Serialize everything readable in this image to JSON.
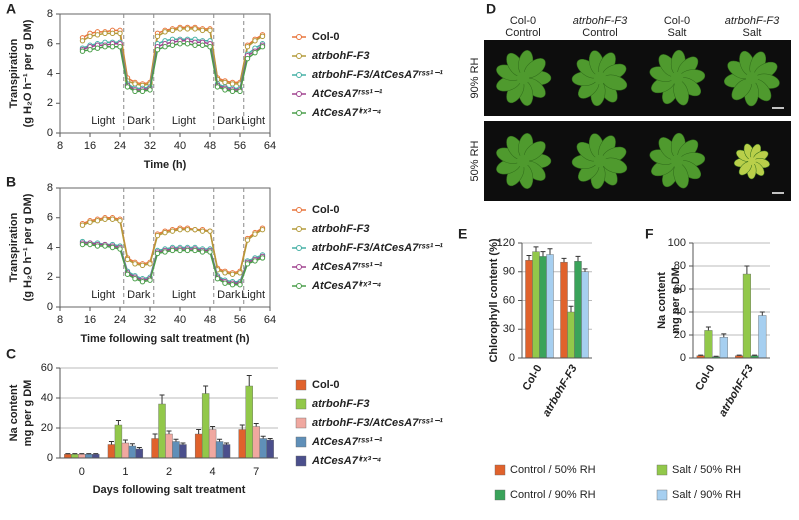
{
  "chart_data": [
    {
      "type": "line",
      "panel": "A",
      "xlabel": "Time (h)",
      "ylabel": [
        "Transpiration",
        "(g H₂O h⁻¹ per g DM)"
      ],
      "xlim": [
        8,
        64
      ],
      "xticks": [
        8,
        16,
        24,
        32,
        40,
        48,
        56,
        64
      ],
      "ylim": [
        0,
        8
      ],
      "yticks": [
        0,
        2,
        4,
        6,
        8
      ],
      "x": [
        14,
        16,
        18,
        20,
        22,
        24,
        26,
        28,
        30,
        32,
        34,
        36,
        38,
        40,
        42,
        44,
        46,
        48,
        50,
        52,
        54,
        56,
        58,
        60,
        62
      ],
      "transitions": [
        25,
        33,
        49,
        57
      ],
      "annotations": [
        "Light",
        "Dark",
        "Light",
        "Dark",
        "Light"
      ],
      "series": [
        {
          "name": "Col-0",
          "color": "#e8743b",
          "values": [
            6.4,
            6.7,
            6.8,
            6.8,
            6.9,
            6.9,
            3.7,
            3.4,
            3.3,
            3.4,
            6.7,
            6.9,
            7.0,
            7.1,
            7.1,
            7.1,
            7.0,
            7.0,
            3.7,
            3.5,
            3.4,
            3.4,
            5.9,
            6.3,
            6.6
          ]
        },
        {
          "name": "atrbohF-F3",
          "color": "#b39a3a",
          "values": [
            6.2,
            6.5,
            6.6,
            6.7,
            6.7,
            6.7,
            3.5,
            3.3,
            3.2,
            3.3,
            6.5,
            6.8,
            6.9,
            7.0,
            7.0,
            7.0,
            6.9,
            6.9,
            3.6,
            3.4,
            3.3,
            3.3,
            5.8,
            6.2,
            6.5
          ]
        },
        {
          "name": "atrbohF-F3/AtCesA7ʳˢˢ¹⁻¹",
          "color": "#45b0a5",
          "values": [
            5.7,
            5.9,
            6.0,
            6.1,
            6.1,
            6.1,
            3.3,
            3.0,
            3.0,
            3.1,
            6.0,
            6.2,
            6.3,
            6.3,
            6.3,
            6.3,
            6.2,
            6.2,
            3.3,
            3.1,
            3.0,
            3.0,
            5.3,
            5.7,
            6.0
          ]
        },
        {
          "name": "AtCesA7ʳˢˢ¹⁻¹",
          "color": "#a0428f",
          "values": [
            5.6,
            5.8,
            5.9,
            5.9,
            6.0,
            6.0,
            3.2,
            2.9,
            2.9,
            3.0,
            5.8,
            6.0,
            6.1,
            6.2,
            6.2,
            6.1,
            6.1,
            6.0,
            3.2,
            3.0,
            2.9,
            2.9,
            5.2,
            5.5,
            5.9
          ]
        },
        {
          "name": "AtCesA7ⁱʳˣ³⁻⁴",
          "color": "#4a9e4a",
          "values": [
            5.5,
            5.6,
            5.7,
            5.8,
            5.8,
            5.8,
            3.1,
            2.8,
            2.8,
            2.9,
            5.6,
            5.8,
            5.9,
            6.0,
            6.0,
            5.9,
            5.9,
            5.8,
            3.1,
            2.9,
            2.8,
            2.8,
            5.0,
            5.4,
            5.8
          ]
        }
      ]
    },
    {
      "type": "line",
      "panel": "B",
      "xlabel": "Time following salt treatment (h)",
      "ylabel": [
        "Transpiration",
        "(g H₂O h⁻¹ per g DM)"
      ],
      "xlim": [
        8,
        64
      ],
      "xticks": [
        8,
        16,
        24,
        32,
        40,
        48,
        56,
        64
      ],
      "ylim": [
        0,
        8
      ],
      "yticks": [
        0,
        2,
        4,
        6,
        8
      ],
      "x": [
        14,
        16,
        18,
        20,
        22,
        24,
        26,
        28,
        30,
        32,
        34,
        36,
        38,
        40,
        42,
        44,
        46,
        48,
        50,
        52,
        54,
        56,
        58,
        60,
        62
      ],
      "transitions": [
        25,
        33,
        49,
        57
      ],
      "annotations": [
        "Light",
        "Dark",
        "Light",
        "Dark",
        "Light"
      ],
      "series": [
        {
          "name": "Col-0",
          "color": "#e8743b",
          "values": [
            5.6,
            5.8,
            5.9,
            6.0,
            6.0,
            5.9,
            3.3,
            3.0,
            2.9,
            3.0,
            4.9,
            5.1,
            5.2,
            5.3,
            5.3,
            5.2,
            5.2,
            5.1,
            2.6,
            2.4,
            2.3,
            2.4,
            4.6,
            5.0,
            5.3
          ]
        },
        {
          "name": "atrbohF-F3",
          "color": "#b39a3a",
          "values": [
            5.5,
            5.7,
            5.8,
            5.9,
            5.9,
            5.8,
            3.2,
            2.9,
            2.8,
            2.9,
            4.8,
            5.0,
            5.1,
            5.2,
            5.2,
            5.2,
            5.1,
            5.1,
            2.5,
            2.3,
            2.2,
            2.3,
            4.5,
            4.9,
            5.2
          ]
        },
        {
          "name": "atrbohF-F3/AtCesA7ʳˢˢ¹⁻¹",
          "color": "#45b0a5",
          "values": [
            4.4,
            4.3,
            4.3,
            4.2,
            4.2,
            4.1,
            2.4,
            2.1,
            1.9,
            2.0,
            3.8,
            3.9,
            4.0,
            4.0,
            4.0,
            4.0,
            3.9,
            3.9,
            2.1,
            1.8,
            1.7,
            1.7,
            3.1,
            3.3,
            3.5
          ]
        },
        {
          "name": "AtCesA7ʳˢˢ¹⁻¹",
          "color": "#a0428f",
          "values": [
            4.3,
            4.3,
            4.2,
            4.2,
            4.1,
            4.0,
            2.3,
            2.0,
            1.8,
            1.9,
            3.7,
            3.8,
            3.9,
            3.9,
            3.9,
            3.9,
            3.8,
            3.8,
            2.0,
            1.7,
            1.6,
            1.6,
            3.0,
            3.2,
            3.4
          ]
        },
        {
          "name": "AtCesA7ⁱʳˣ³⁻⁴",
          "color": "#4a9e4a",
          "values": [
            4.2,
            4.2,
            4.1,
            4.1,
            4.0,
            3.9,
            2.2,
            1.9,
            1.7,
            1.8,
            3.6,
            3.7,
            3.8,
            3.8,
            3.8,
            3.8,
            3.7,
            3.7,
            1.9,
            1.6,
            1.5,
            1.5,
            2.9,
            3.1,
            3.3
          ]
        }
      ]
    },
    {
      "type": "bar",
      "panel": "C",
      "xlabel": "Days following salt treatment",
      "ylabel": [
        "Na content",
        "mg per g DM"
      ],
      "categories": [
        "0",
        "1",
        "2",
        "4",
        "7"
      ],
      "ylim": [
        0,
        60
      ],
      "yticks": [
        0,
        20,
        40,
        60
      ],
      "grid": true,
      "series": [
        {
          "name": "Col-0",
          "color": "#e0622c",
          "values": [
            2.5,
            9,
            13,
            16,
            19
          ],
          "errors": [
            0.4,
            2,
            3,
            3,
            3
          ]
        },
        {
          "name": "atrbohF-F3",
          "color": "#92c84a",
          "values": [
            2.5,
            22,
            36,
            43,
            48
          ],
          "errors": [
            0.4,
            3,
            6,
            5,
            7
          ]
        },
        {
          "name": "atrbohF-F3/AtCesA7ʳˢˢ¹⁻¹",
          "color": "#f0a8a0",
          "values": [
            2.5,
            10,
            16,
            19,
            21
          ],
          "errors": [
            0.4,
            2,
            2,
            2,
            2
          ]
        },
        {
          "name": "AtCesA7ʳˢˢ¹⁻¹",
          "color": "#5f8fb8",
          "values": [
            2.5,
            8,
            11,
            11,
            13
          ],
          "errors": [
            0.4,
            1.5,
            1.5,
            1.5,
            1.5
          ]
        },
        {
          "name": "AtCesA7ⁱʳˣ³⁻⁴",
          "color": "#4b4f8c",
          "values": [
            2.5,
            6,
            9,
            9,
            12
          ],
          "errors": [
            0.4,
            1,
            1,
            1,
            1
          ]
        }
      ]
    },
    {
      "type": "bar",
      "panel": "E",
      "ylabel": [
        "Chlorophyll content (%)"
      ],
      "categories": [
        "Col-0",
        "atrbohF-F3"
      ],
      "ylim": [
        0,
        120
      ],
      "yticks": [
        0,
        30,
        60,
        90,
        120
      ],
      "grid": true,
      "series": [
        {
          "name": "Control / 50% RH",
          "color": "#e0622c",
          "values": [
            102,
            100
          ],
          "errors": [
            5,
            4
          ]
        },
        {
          "name": "Salt / 50% RH",
          "color": "#92c84a",
          "values": [
            111,
            48
          ],
          "errors": [
            5,
            6
          ]
        },
        {
          "name": "Control / 90% RH",
          "color": "#3aa35a",
          "values": [
            106,
            101
          ],
          "errors": [
            5,
            5
          ]
        },
        {
          "name": "Salt / 90% RH",
          "color": "#a6cff0",
          "values": [
            108,
            90
          ],
          "errors": [
            6,
            3
          ]
        }
      ]
    },
    {
      "type": "bar",
      "panel": "F",
      "ylabel": [
        "Na content",
        "mg per g DM"
      ],
      "categories": [
        "Col-0",
        "atrbohF-F3"
      ],
      "ylim": [
        0,
        100
      ],
      "yticks": [
        0,
        20,
        40,
        60,
        80,
        100
      ],
      "grid": true,
      "series": [
        {
          "color": "#e0622c",
          "values": [
            2,
            2
          ],
          "errors": [
            0.5,
            0.5
          ]
        },
        {
          "color": "#92c84a",
          "values": [
            24,
            73
          ],
          "errors": [
            3,
            7
          ]
        },
        {
          "color": "#3aa35a",
          "values": [
            1,
            2
          ],
          "errors": [
            0.5,
            0.5
          ]
        },
        {
          "color": "#a6cff0",
          "values": [
            18,
            37
          ],
          "errors": [
            3,
            3
          ]
        }
      ]
    }
  ],
  "panel_d": {
    "panel": "D",
    "columns": [
      [
        "Col-0",
        "Control"
      ],
      [
        "atrbohF-F3",
        "Control"
      ],
      [
        "Col-0",
        "Salt"
      ],
      [
        "atrbohF-F3",
        "Salt"
      ]
    ],
    "rows": [
      "90% RH",
      "50% RH"
    ]
  }
}
